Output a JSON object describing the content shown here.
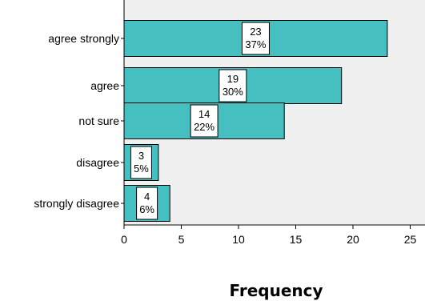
{
  "chart_data": {
    "type": "bar",
    "orientation": "horizontal",
    "categories": [
      "agree strongly",
      "agree",
      "not sure",
      "disagree",
      "strongly disagree"
    ],
    "values": [
      23,
      19,
      14,
      3,
      4
    ],
    "data_labels": [
      {
        "count": "23",
        "percent": "37%"
      },
      {
        "count": "19",
        "percent": "30%"
      },
      {
        "count": "14",
        "percent": "22%"
      },
      {
        "count": "3",
        "percent": "5%"
      },
      {
        "count": "4",
        "percent": "6%"
      }
    ],
    "xlabel": "Frequency",
    "ylabel": "",
    "xlim": [
      0,
      25
    ],
    "xticks": [
      "0",
      "5",
      "10",
      "15",
      "20",
      "25"
    ],
    "grid": false,
    "legend": "none",
    "colors": {
      "bar": "#45BFBF",
      "plot_background": "#F0F0F0",
      "bar_edge": "#000000"
    }
  }
}
